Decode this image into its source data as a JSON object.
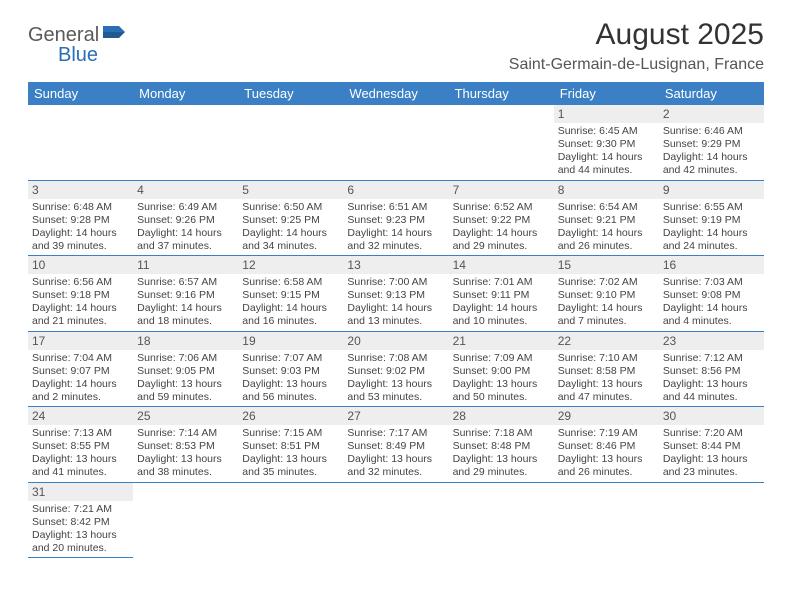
{
  "brand": {
    "part1": "General",
    "part2": "Blue"
  },
  "title": "August 2025",
  "location": "Saint-Germain-de-Lusignan, France",
  "colors": {
    "header_bg": "#3b7fc4",
    "header_text": "#ffffff",
    "daynum_bg": "#eeeeee",
    "border": "#3b7fc4",
    "brand_gray": "#5a5a5a",
    "brand_blue": "#2a6fb5"
  },
  "typography": {
    "title_fontsize": 30,
    "location_fontsize": 16,
    "header_fontsize": 13,
    "daynum_fontsize": 12,
    "details_fontsize": 10.5
  },
  "weekdays": [
    "Sunday",
    "Monday",
    "Tuesday",
    "Wednesday",
    "Thursday",
    "Friday",
    "Saturday"
  ],
  "weeks": [
    [
      null,
      null,
      null,
      null,
      null,
      {
        "n": "1",
        "sr": "6:45 AM",
        "ss": "9:30 PM",
        "dl": "14 hours and 44 minutes."
      },
      {
        "n": "2",
        "sr": "6:46 AM",
        "ss": "9:29 PM",
        "dl": "14 hours and 42 minutes."
      }
    ],
    [
      {
        "n": "3",
        "sr": "6:48 AM",
        "ss": "9:28 PM",
        "dl": "14 hours and 39 minutes."
      },
      {
        "n": "4",
        "sr": "6:49 AM",
        "ss": "9:26 PM",
        "dl": "14 hours and 37 minutes."
      },
      {
        "n": "5",
        "sr": "6:50 AM",
        "ss": "9:25 PM",
        "dl": "14 hours and 34 minutes."
      },
      {
        "n": "6",
        "sr": "6:51 AM",
        "ss": "9:23 PM",
        "dl": "14 hours and 32 minutes."
      },
      {
        "n": "7",
        "sr": "6:52 AM",
        "ss": "9:22 PM",
        "dl": "14 hours and 29 minutes."
      },
      {
        "n": "8",
        "sr": "6:54 AM",
        "ss": "9:21 PM",
        "dl": "14 hours and 26 minutes."
      },
      {
        "n": "9",
        "sr": "6:55 AM",
        "ss": "9:19 PM",
        "dl": "14 hours and 24 minutes."
      }
    ],
    [
      {
        "n": "10",
        "sr": "6:56 AM",
        "ss": "9:18 PM",
        "dl": "14 hours and 21 minutes."
      },
      {
        "n": "11",
        "sr": "6:57 AM",
        "ss": "9:16 PM",
        "dl": "14 hours and 18 minutes."
      },
      {
        "n": "12",
        "sr": "6:58 AM",
        "ss": "9:15 PM",
        "dl": "14 hours and 16 minutes."
      },
      {
        "n": "13",
        "sr": "7:00 AM",
        "ss": "9:13 PM",
        "dl": "14 hours and 13 minutes."
      },
      {
        "n": "14",
        "sr": "7:01 AM",
        "ss": "9:11 PM",
        "dl": "14 hours and 10 minutes."
      },
      {
        "n": "15",
        "sr": "7:02 AM",
        "ss": "9:10 PM",
        "dl": "14 hours and 7 minutes."
      },
      {
        "n": "16",
        "sr": "7:03 AM",
        "ss": "9:08 PM",
        "dl": "14 hours and 4 minutes."
      }
    ],
    [
      {
        "n": "17",
        "sr": "7:04 AM",
        "ss": "9:07 PM",
        "dl": "14 hours and 2 minutes."
      },
      {
        "n": "18",
        "sr": "7:06 AM",
        "ss": "9:05 PM",
        "dl": "13 hours and 59 minutes."
      },
      {
        "n": "19",
        "sr": "7:07 AM",
        "ss": "9:03 PM",
        "dl": "13 hours and 56 minutes."
      },
      {
        "n": "20",
        "sr": "7:08 AM",
        "ss": "9:02 PM",
        "dl": "13 hours and 53 minutes."
      },
      {
        "n": "21",
        "sr": "7:09 AM",
        "ss": "9:00 PM",
        "dl": "13 hours and 50 minutes."
      },
      {
        "n": "22",
        "sr": "7:10 AM",
        "ss": "8:58 PM",
        "dl": "13 hours and 47 minutes."
      },
      {
        "n": "23",
        "sr": "7:12 AM",
        "ss": "8:56 PM",
        "dl": "13 hours and 44 minutes."
      }
    ],
    [
      {
        "n": "24",
        "sr": "7:13 AM",
        "ss": "8:55 PM",
        "dl": "13 hours and 41 minutes."
      },
      {
        "n": "25",
        "sr": "7:14 AM",
        "ss": "8:53 PM",
        "dl": "13 hours and 38 minutes."
      },
      {
        "n": "26",
        "sr": "7:15 AM",
        "ss": "8:51 PM",
        "dl": "13 hours and 35 minutes."
      },
      {
        "n": "27",
        "sr": "7:17 AM",
        "ss": "8:49 PM",
        "dl": "13 hours and 32 minutes."
      },
      {
        "n": "28",
        "sr": "7:18 AM",
        "ss": "8:48 PM",
        "dl": "13 hours and 29 minutes."
      },
      {
        "n": "29",
        "sr": "7:19 AM",
        "ss": "8:46 PM",
        "dl": "13 hours and 26 minutes."
      },
      {
        "n": "30",
        "sr": "7:20 AM",
        "ss": "8:44 PM",
        "dl": "13 hours and 23 minutes."
      }
    ],
    [
      {
        "n": "31",
        "sr": "7:21 AM",
        "ss": "8:42 PM",
        "dl": "13 hours and 20 minutes."
      },
      null,
      null,
      null,
      null,
      null,
      null
    ]
  ],
  "labels": {
    "sunrise": "Sunrise:",
    "sunset": "Sunset:",
    "daylight": "Daylight:"
  }
}
